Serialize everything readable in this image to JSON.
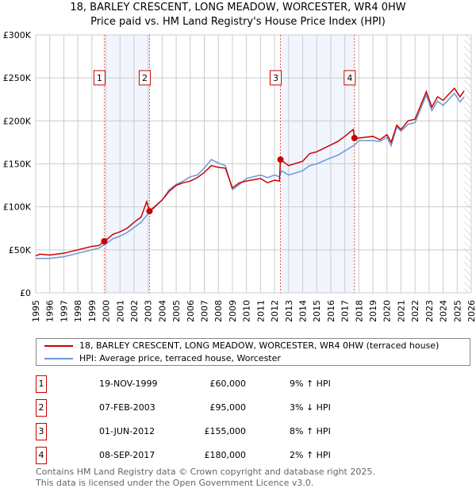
{
  "chart_data": {
    "type": "line",
    "title": "18, BARLEY CRESCENT, LONG MEADOW, WORCESTER, WR4 0HW",
    "subtitle": "Price paid vs. HM Land Registry's House Price Index (HPI)",
    "xlim": [
      1995,
      2026
    ],
    "ylim": [
      0,
      300000
    ],
    "y_ticks": [
      {
        "v": 0,
        "label": "£0"
      },
      {
        "v": 50000,
        "label": "£50K"
      },
      {
        "v": 100000,
        "label": "£100K"
      },
      {
        "v": 150000,
        "label": "£150K"
      },
      {
        "v": 200000,
        "label": "£200K"
      },
      {
        "v": 250000,
        "label": "£250K"
      },
      {
        "v": 300000,
        "label": "£300K"
      }
    ],
    "x_ticks": [
      "1995",
      "1996",
      "1997",
      "1998",
      "1999",
      "2000",
      "2001",
      "2002",
      "2003",
      "2004",
      "2005",
      "2006",
      "2007",
      "2008",
      "2009",
      "2010",
      "2011",
      "2012",
      "2013",
      "2014",
      "2015",
      "2016",
      "2017",
      "2018",
      "2019",
      "2020",
      "2021",
      "2022",
      "2023",
      "2024",
      "2025",
      "2026"
    ],
    "grid": true,
    "series": [
      {
        "name": "18, BARLEY CRESCENT, LONG MEADOW, WORCESTER, WR4 0HW (terraced house)",
        "color": "#cc0000",
        "x": [
          1995,
          1995.3,
          1996,
          1997,
          1998,
          1999,
          1999.5,
          1999.9,
          2000.5,
          2001,
          2001.5,
          2002,
          2002.5,
          2002.9,
          2003.1,
          2004,
          2004.5,
          2005,
          2005.5,
          2006,
          2006.5,
          2007,
          2007.5,
          2008,
          2008.5,
          2009,
          2009.5,
          2010,
          2011,
          2011.5,
          2012,
          2012.35,
          2012.42,
          2013,
          2014,
          2014.5,
          2015,
          2016,
          2016.5,
          2017,
          2017.6,
          2017.7,
          2018,
          2019,
          2019.5,
          2020,
          2020.3,
          2020.7,
          2021,
          2021.5,
          2022,
          2022.8,
          2023.2,
          2023.6,
          2024,
          2024.8,
          2025.2,
          2025.5
        ],
        "values": [
          43000,
          45000,
          44000,
          46000,
          50000,
          54000,
          55000,
          60000,
          68000,
          71000,
          75000,
          82000,
          88000,
          106000,
          95000,
          108000,
          118000,
          125000,
          128000,
          130000,
          134000,
          140000,
          148000,
          146000,
          145000,
          122000,
          128000,
          130000,
          133000,
          128000,
          131000,
          130000,
          155000,
          148000,
          153000,
          162000,
          164000,
          172000,
          176000,
          182000,
          190000,
          180000,
          180000,
          182000,
          178000,
          184000,
          175000,
          195000,
          190000,
          200000,
          202000,
          234000,
          216000,
          228000,
          224000,
          238000,
          228000,
          235000
        ]
      },
      {
        "name": "HPI: Average price, terraced house, Worcester",
        "color": "#6a98d4",
        "x": [
          1995,
          1996,
          1997,
          1998,
          1999,
          1999.5,
          2000,
          2000.5,
          2001,
          2001.5,
          2002,
          2002.5,
          2003,
          2003.5,
          2004,
          2004.5,
          2005,
          2005.5,
          2006,
          2006.5,
          2007,
          2007.5,
          2008,
          2008.5,
          2009,
          2009.5,
          2010,
          2011,
          2011.5,
          2012,
          2012.35,
          2012.5,
          2013,
          2014,
          2014.5,
          2015,
          2016,
          2016.5,
          2017,
          2017.7,
          2018,
          2019,
          2019.5,
          2020,
          2020.3,
          2020.7,
          2021,
          2021.5,
          2022,
          2022.8,
          2023.2,
          2023.6,
          2024,
          2024.8,
          2025.2,
          2025.5
        ],
        "values": [
          40000,
          40000,
          42000,
          46000,
          50000,
          52000,
          57000,
          63000,
          66000,
          70000,
          76000,
          82000,
          92000,
          100000,
          108000,
          120000,
          126000,
          130000,
          135000,
          137000,
          145000,
          155000,
          151000,
          148000,
          120000,
          126000,
          133000,
          137000,
          134000,
          137000,
          135000,
          142000,
          137000,
          142000,
          148000,
          150000,
          157000,
          160000,
          165000,
          172000,
          177000,
          177000,
          176000,
          181000,
          171000,
          193000,
          188000,
          196000,
          198000,
          230000,
          212000,
          223000,
          218000,
          232000,
          222000,
          228000
        ]
      }
    ],
    "annotations": [
      {
        "id": "1",
        "x": 1999.88,
        "date": "19-NOV-1999",
        "price": "£60,000",
        "value": 60000,
        "hpi": "9% ↑ HPI"
      },
      {
        "id": "2",
        "x": 2003.1,
        "date": "07-FEB-2003",
        "price": "£95,000",
        "value": 95000,
        "hpi": "3% ↓ HPI"
      },
      {
        "id": "3",
        "x": 2012.42,
        "date": "01-JUN-2012",
        "price": "£155,000",
        "value": 155000,
        "hpi": "8% ↑ HPI"
      },
      {
        "id": "4",
        "x": 2017.69,
        "date": "08-SEP-2017",
        "price": "£180,000",
        "value": 180000,
        "hpi": "2% ↑ HPI"
      }
    ],
    "future_hatch_from": 2025.5
  },
  "footer": {
    "line1": "Contains HM Land Registry data © Crown copyright and database right 2025.",
    "line2": "This data is licensed under the Open Government Licence v3.0."
  }
}
